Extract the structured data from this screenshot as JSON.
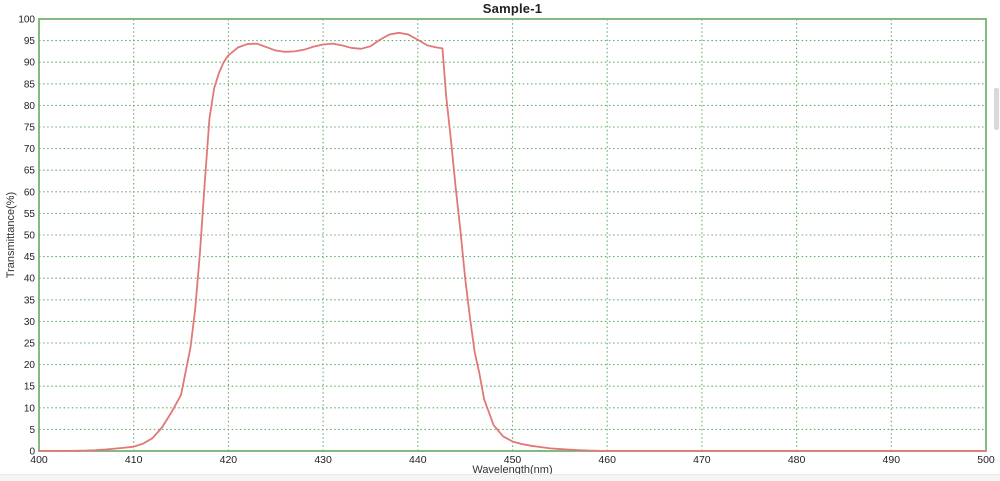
{
  "chart_data": {
    "type": "line",
    "title": "Sample-1",
    "xlabel": "Wavelength(nm)",
    "ylabel": "Transmittance(%)",
    "xlim": [
      400,
      500
    ],
    "ylim": [
      0,
      100
    ],
    "x_ticks": [
      400,
      410,
      420,
      430,
      440,
      450,
      460,
      470,
      480,
      490,
      500
    ],
    "y_ticks": [
      0,
      5,
      10,
      15,
      20,
      25,
      30,
      35,
      40,
      45,
      50,
      55,
      60,
      65,
      70,
      75,
      80,
      85,
      90,
      95,
      100
    ],
    "grid": "dotted",
    "legend": "none",
    "colors": {
      "line": "#e07878",
      "grid": "#4f9d4f",
      "border": "#74b274",
      "text": "#222222"
    },
    "series": [
      {
        "name": "Sample-1",
        "points": [
          [
            400,
            0
          ],
          [
            402,
            0
          ],
          [
            404,
            0.05
          ],
          [
            405,
            0.1
          ],
          [
            406,
            0.2
          ],
          [
            407,
            0.35
          ],
          [
            408,
            0.55
          ],
          [
            409,
            0.75
          ],
          [
            410,
            1.0
          ],
          [
            411,
            1.7
          ],
          [
            412,
            3.0
          ],
          [
            413,
            5.5
          ],
          [
            414,
            9.0
          ],
          [
            415,
            13.0
          ],
          [
            416,
            24.0
          ],
          [
            416.5,
            33.0
          ],
          [
            417,
            46.0
          ],
          [
            417.5,
            62.0
          ],
          [
            418,
            77.0
          ],
          [
            418.5,
            84.0
          ],
          [
            419,
            87.5
          ],
          [
            419.5,
            90.0
          ],
          [
            420,
            91.6
          ],
          [
            421,
            93.4
          ],
          [
            422,
            94.2
          ],
          [
            423,
            94.3
          ],
          [
            424,
            93.5
          ],
          [
            425,
            92.7
          ],
          [
            426,
            92.4
          ],
          [
            427,
            92.5
          ],
          [
            428,
            92.9
          ],
          [
            429,
            93.6
          ],
          [
            430,
            94.1
          ],
          [
            431,
            94.3
          ],
          [
            432,
            93.9
          ],
          [
            433,
            93.3
          ],
          [
            434,
            93.1
          ],
          [
            435,
            93.7
          ],
          [
            436,
            95.2
          ],
          [
            437,
            96.4
          ],
          [
            438,
            96.8
          ],
          [
            439,
            96.4
          ],
          [
            440,
            95.2
          ],
          [
            441,
            93.9
          ],
          [
            442,
            93.4
          ],
          [
            442.6,
            93.2
          ],
          [
            443,
            82.0
          ],
          [
            443.5,
            72.0
          ],
          [
            444,
            61.0
          ],
          [
            444.5,
            51.0
          ],
          [
            445,
            40.0
          ],
          [
            445.5,
            31.0
          ],
          [
            446,
            23.0
          ],
          [
            446.5,
            18.0
          ],
          [
            447,
            12.0
          ],
          [
            447.5,
            9.0
          ],
          [
            448,
            6.0
          ],
          [
            449,
            3.4
          ],
          [
            450,
            2.2
          ],
          [
            451,
            1.6
          ],
          [
            452,
            1.2
          ],
          [
            453,
            0.9
          ],
          [
            454,
            0.6
          ],
          [
            455,
            0.45
          ],
          [
            456,
            0.3
          ],
          [
            457,
            0.2
          ],
          [
            458,
            0.1
          ],
          [
            459,
            0.05
          ],
          [
            460,
            0
          ],
          [
            462,
            0
          ],
          [
            465,
            0
          ],
          [
            470,
            0
          ],
          [
            475,
            0
          ],
          [
            480,
            0
          ],
          [
            485,
            0
          ],
          [
            490,
            0
          ],
          [
            495,
            0
          ],
          [
            500,
            0
          ]
        ]
      }
    ]
  },
  "window": {
    "scrollbar": "vertical-scrollbar-thumb"
  }
}
